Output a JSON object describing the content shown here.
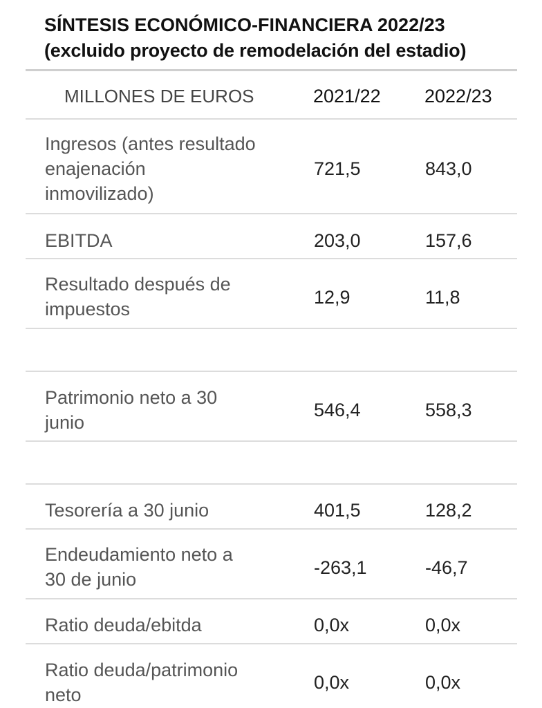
{
  "title": {
    "line1": "SÍNTESIS ECONÓMICO-FINANCIERA 2022/23",
    "line2": "(excluido proyecto de remodelación del estadio)"
  },
  "table": {
    "header": {
      "label": "MILLONES DE EUROS",
      "col1": "2021/22",
      "col2": "2022/23"
    },
    "rows": [
      {
        "label_lines": [
          "Ingresos (antes resultado",
          "enajenación",
          "inmovilizado)"
        ],
        "col1": "721,5",
        "col2": "843,0"
      },
      {
        "label_lines": [
          "EBITDA"
        ],
        "col1": "203,0",
        "col2": "157,6"
      },
      {
        "label_lines": [
          "Resultado después de",
          "impuestos"
        ],
        "col1": "12,9",
        "col2": "11,8"
      },
      {
        "label_lines": [
          "Patrimonio neto a 30",
          "junio"
        ],
        "col1": "546,4",
        "col2": "558,3"
      },
      {
        "label_lines": [
          "Tesorería a 30 junio"
        ],
        "col1": "401,5",
        "col2": "128,2"
      },
      {
        "label_lines": [
          "Endeudamiento neto a",
          "30 de junio"
        ],
        "col1": "-263,1",
        "col2": "-46,7"
      },
      {
        "label_lines": [
          "Ratio deuda/ebitda"
        ],
        "col1": "0,0x",
        "col2": "0,0x"
      },
      {
        "label_lines": [
          "Ratio deuda/patrimonio",
          "neto"
        ],
        "col1": "0,0x",
        "col2": "0,0x"
      }
    ]
  }
}
